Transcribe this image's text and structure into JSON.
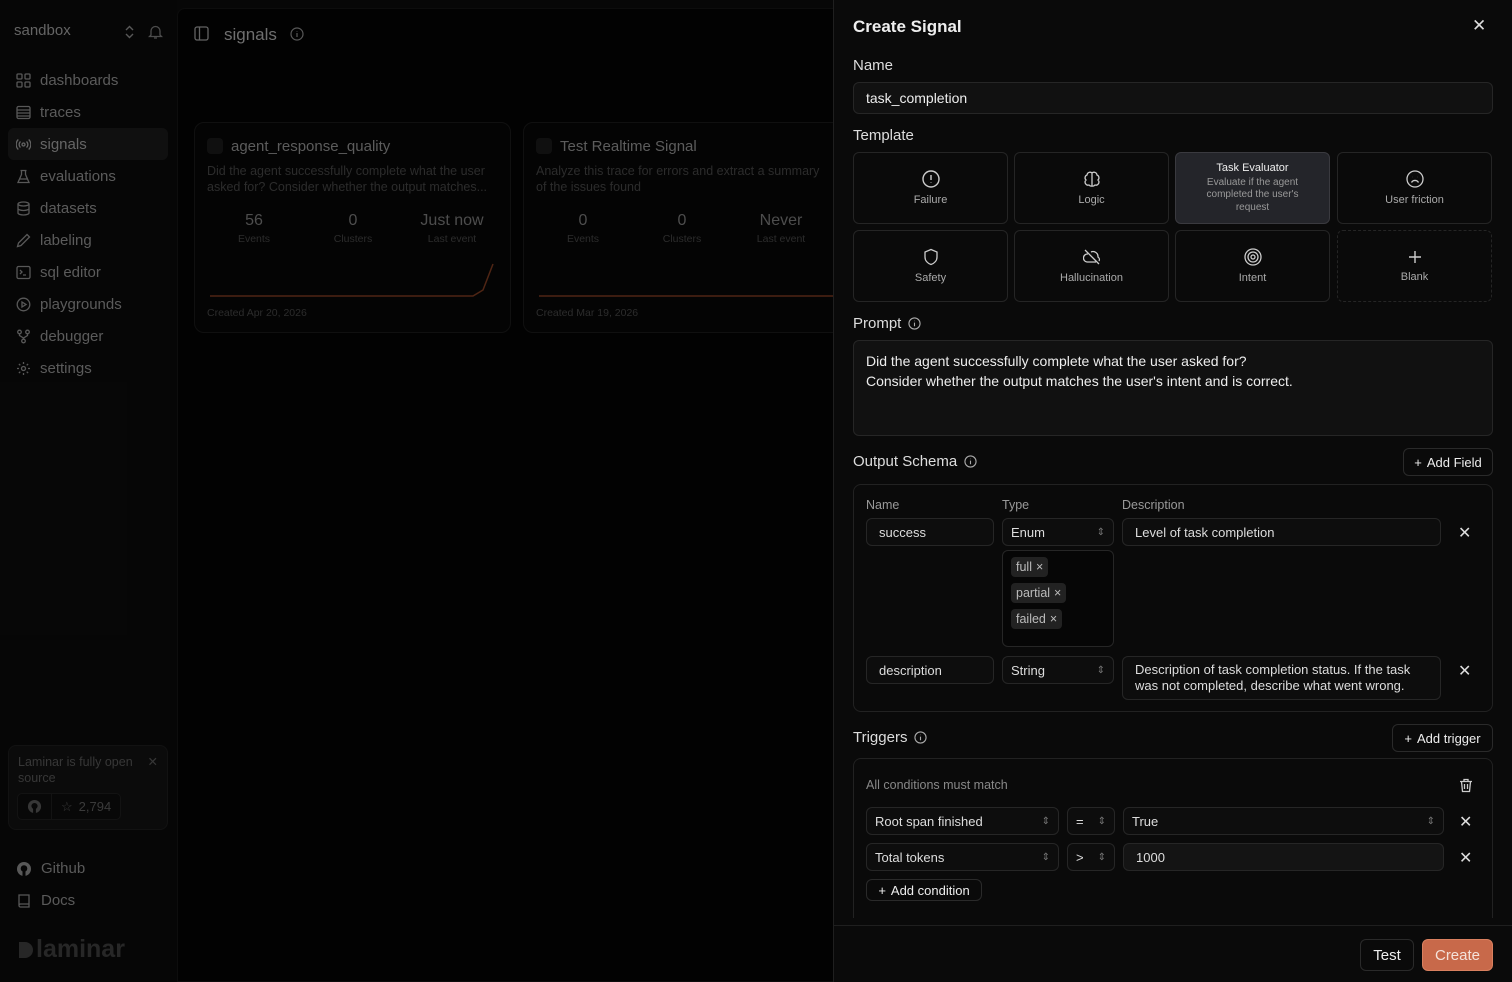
{
  "sidebar": {
    "workspace": "sandbox",
    "items": [
      {
        "label": "dashboards",
        "icon": "grid-icon"
      },
      {
        "label": "traces",
        "icon": "list-icon"
      },
      {
        "label": "signals",
        "icon": "broadcast-icon",
        "active": true
      },
      {
        "label": "evaluations",
        "icon": "flask-icon"
      },
      {
        "label": "datasets",
        "icon": "database-icon"
      },
      {
        "label": "labeling",
        "icon": "pencil-icon"
      },
      {
        "label": "sql editor",
        "icon": "terminal-icon"
      },
      {
        "label": "playgrounds",
        "icon": "play-icon"
      },
      {
        "label": "debugger",
        "icon": "git-fork-icon"
      },
      {
        "label": "settings",
        "icon": "gear-icon"
      }
    ],
    "promo": {
      "text": "Laminar is fully open source",
      "stars": "2,794"
    },
    "footer": {
      "github": "Github",
      "docs": "Docs"
    },
    "logo": "laminar"
  },
  "main": {
    "title": "signals",
    "cards": [
      {
        "title": "agent_response_quality",
        "description": "Did the agent successfully complete what the user asked for? Consider whether the output matches...",
        "events": "56",
        "events_label": "Events",
        "clusters": "0",
        "clusters_label": "Clusters",
        "last_event": "Just now",
        "last_event_label": "Last event",
        "created": "Created Apr 20, 2026"
      },
      {
        "title": "Test Realtime Signal",
        "description": "Analyze this trace for errors and extract a summary of the issues found",
        "events": "0",
        "events_label": "Events",
        "clusters": "0",
        "clusters_label": "Clusters",
        "last_event": "Never",
        "last_event_label": "Last event",
        "created": "Created Mar 19, 2026"
      }
    ]
  },
  "panel": {
    "title": "Create Signal",
    "name_label": "Name",
    "name_value": "task_completion",
    "template_label": "Template",
    "templates": [
      {
        "label": "Failure",
        "icon": "alert-circle-icon"
      },
      {
        "label": "Logic",
        "icon": "brain-icon"
      },
      {
        "label": "Task Evaluator",
        "description": "Evaluate if the agent completed the user's request",
        "selected": true
      },
      {
        "label": "User friction",
        "icon": "frown-icon"
      },
      {
        "label": "Safety",
        "icon": "shield-icon"
      },
      {
        "label": "Hallucination",
        "icon": "cloud-off-icon"
      },
      {
        "label": "Intent",
        "icon": "target-icon"
      },
      {
        "label": "Blank",
        "icon": "plus-icon"
      }
    ],
    "prompt_label": "Prompt",
    "prompt_value": "Did the agent successfully complete what the user asked for?\nConsider whether the output matches the user's intent and is correct.",
    "schema_label": "Output Schema",
    "add_field": "Add Field",
    "schema_headers": {
      "name": "Name",
      "type": "Type",
      "description": "Description"
    },
    "fields": [
      {
        "name": "success",
        "type": "Enum",
        "description": "Level of task completion",
        "enum_values": [
          "full",
          "partial",
          "failed"
        ]
      },
      {
        "name": "description",
        "type": "String",
        "description": "Description of task completion status. If the task was not completed, describe what went wrong."
      }
    ],
    "triggers_label": "Triggers",
    "add_trigger": "Add trigger",
    "trigger": {
      "match_text": "All conditions must match",
      "conditions": [
        {
          "field": "Root span finished",
          "op": "=",
          "value": "True"
        },
        {
          "field": "Total tokens",
          "op": ">",
          "value": "1000"
        }
      ],
      "add_condition": "Add condition"
    },
    "test_button": "Test",
    "create_button": "Create"
  },
  "colors": {
    "accent": "#c8694a",
    "spark": "#8a3f22"
  }
}
